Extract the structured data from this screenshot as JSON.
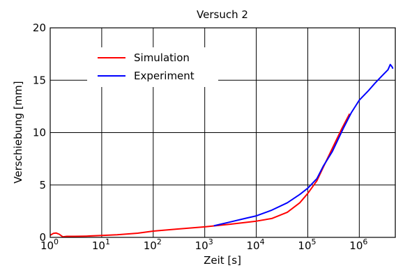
{
  "chart_data": {
    "type": "line",
    "title": "Versuch 2",
    "xlabel": "Zeit [s]",
    "ylabel": "Verschiebung [mm]",
    "x_scale": "log",
    "xlim": [
      1,
      5000000
    ],
    "ylim": [
      0,
      20
    ],
    "x_ticks": [
      {
        "value": 1,
        "base": "10",
        "exp": "0"
      },
      {
        "value": 10,
        "base": "10",
        "exp": "1"
      },
      {
        "value": 100,
        "base": "10",
        "exp": "2"
      },
      {
        "value": 1000,
        "base": "10",
        "exp": "3"
      },
      {
        "value": 10000,
        "base": "10",
        "exp": "4"
      },
      {
        "value": 100000,
        "base": "10",
        "exp": "5"
      },
      {
        "value": 1000000,
        "base": "10",
        "exp": "6"
      }
    ],
    "y_ticks": [
      {
        "value": 0,
        "label": "0"
      },
      {
        "value": 5,
        "label": "5"
      },
      {
        "value": 10,
        "label": "10"
      },
      {
        "value": 15,
        "label": "15"
      },
      {
        "value": 20,
        "label": "20"
      }
    ],
    "grid": true,
    "legend_position": "upper-left",
    "series": [
      {
        "name": "Simulation",
        "color": "#ff0000",
        "points": [
          [
            1,
            0.2
          ],
          [
            1.15,
            0.38
          ],
          [
            1.3,
            0.42
          ],
          [
            1.5,
            0.3
          ],
          [
            1.75,
            0.05
          ],
          [
            2.1,
            0.1
          ],
          [
            3,
            0.1
          ],
          [
            5,
            0.12
          ],
          [
            10,
            0.18
          ],
          [
            20,
            0.25
          ],
          [
            50,
            0.4
          ],
          [
            100,
            0.6
          ],
          [
            300,
            0.8
          ],
          [
            1000,
            1.0
          ],
          [
            3000,
            1.25
          ],
          [
            10000,
            1.55
          ],
          [
            20000,
            1.8
          ],
          [
            40000,
            2.4
          ],
          [
            70000,
            3.3
          ],
          [
            100000,
            4.2
          ],
          [
            150000,
            5.4
          ],
          [
            200000,
            6.7
          ],
          [
            300000,
            8.5
          ],
          [
            450000,
            10.3
          ],
          [
            650000,
            11.8
          ]
        ]
      },
      {
        "name": "Experiment",
        "color": "#0000ff",
        "points": [
          [
            1500,
            1.1
          ],
          [
            3000,
            1.45
          ],
          [
            6000,
            1.8
          ],
          [
            10000,
            2.05
          ],
          [
            20000,
            2.6
          ],
          [
            40000,
            3.3
          ],
          [
            70000,
            4.1
          ],
          [
            100000,
            4.7
          ],
          [
            150000,
            5.6
          ],
          [
            200000,
            6.8
          ],
          [
            300000,
            8.2
          ],
          [
            500000,
            10.5
          ],
          [
            700000,
            11.9
          ],
          [
            1000000,
            13.1
          ],
          [
            1500000,
            14.0
          ],
          [
            2000000,
            14.7
          ],
          [
            2500000,
            15.2
          ],
          [
            3000000,
            15.6
          ],
          [
            3600000,
            16.0
          ],
          [
            4000000,
            16.5
          ],
          [
            4300000,
            16.3
          ],
          [
            4500000,
            16.1
          ]
        ]
      }
    ]
  }
}
